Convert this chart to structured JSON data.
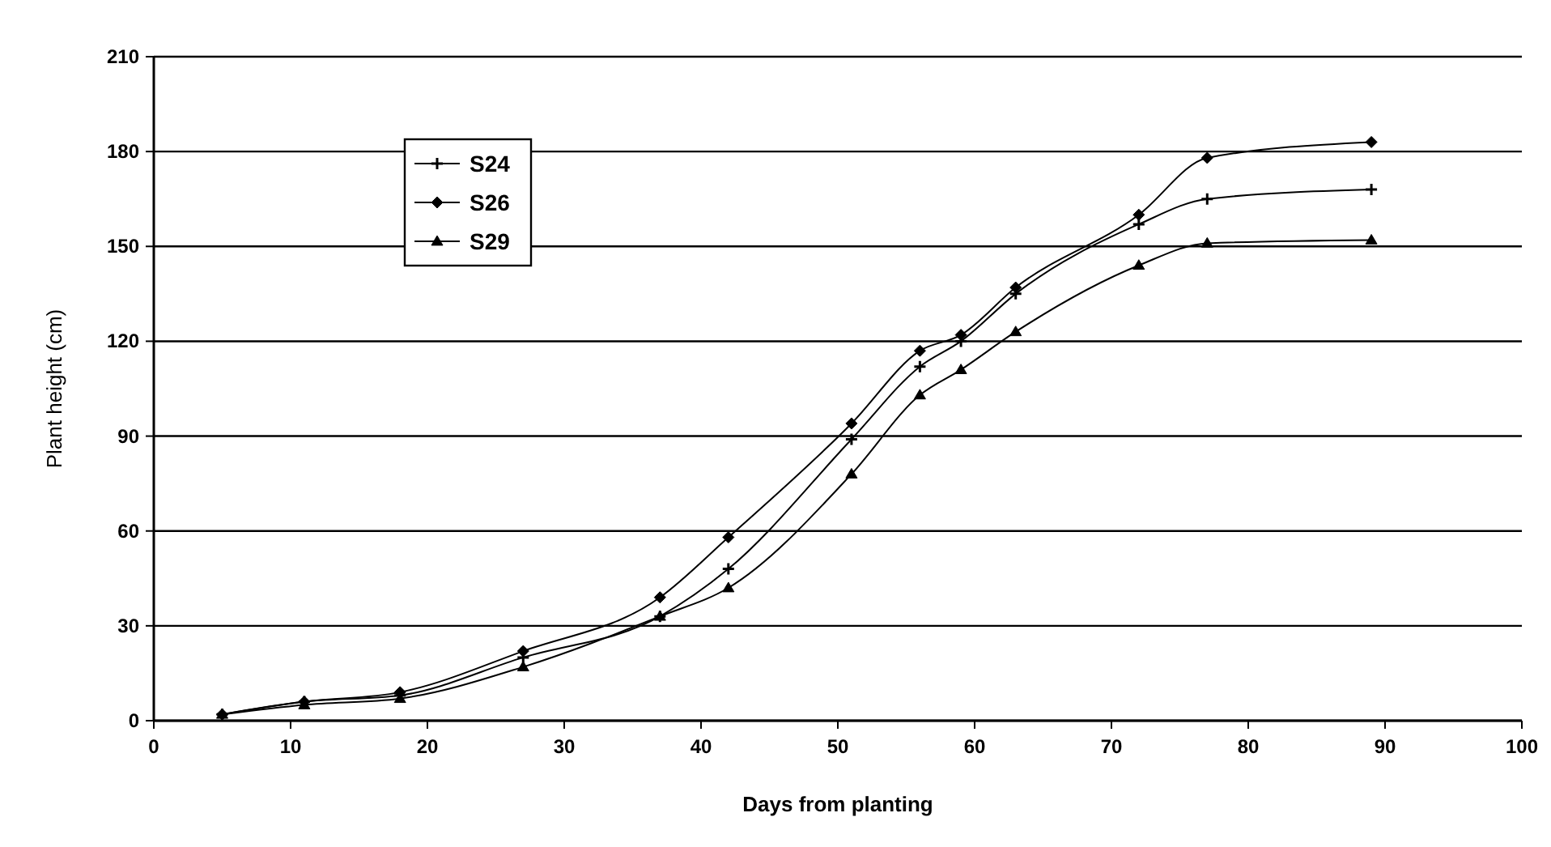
{
  "chart_data": {
    "type": "line",
    "xlabel": "Days from planting",
    "ylabel": "Plant height (cm)",
    "x": [
      5,
      11,
      18,
      27,
      37,
      42,
      51,
      56,
      59,
      63,
      72,
      77,
      89
    ],
    "xlim": [
      0,
      100
    ],
    "xticks": [
      0,
      10,
      20,
      30,
      40,
      50,
      60,
      70,
      80,
      90,
      100
    ],
    "ylim": [
      0,
      210
    ],
    "yticks": [
      0,
      30,
      60,
      90,
      120,
      150,
      180,
      210
    ],
    "grid": "y",
    "legend": "top left",
    "series": [
      {
        "name": "S24",
        "color": "#000000",
        "marker": "cross",
        "values": [
          2,
          6,
          8,
          20,
          33,
          48,
          89,
          112,
          120,
          135,
          157,
          165,
          168
        ]
      },
      {
        "name": "S26",
        "color": "#000000",
        "marker": "diamond",
        "values": [
          2,
          6,
          9,
          22,
          39,
          58,
          94,
          117,
          122,
          137,
          160,
          178,
          183
        ]
      },
      {
        "name": "S29",
        "color": "#000000",
        "marker": "triangle",
        "values": [
          2,
          5,
          7,
          17,
          33,
          42,
          78,
          103,
          111,
          123,
          144,
          151,
          152
        ]
      }
    ]
  }
}
